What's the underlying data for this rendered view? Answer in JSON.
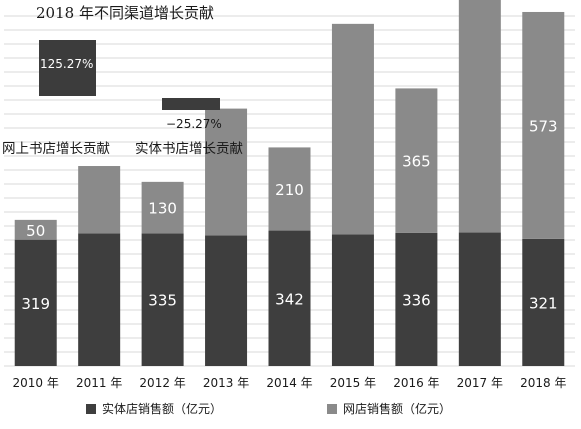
{
  "colors": {
    "physical": "#3e3e3e",
    "online": "#8a8a8a",
    "grid": "#d8d8d8",
    "inset_bar": "#3c3c3c"
  },
  "chart_data": [
    {
      "type": "bar",
      "stacked": true,
      "categories": [
        "2010 年",
        "2011 年",
        "2012 年",
        "2013 年",
        "2014 年",
        "2015 年",
        "2016 年",
        "2017 年",
        "2018 年"
      ],
      "series": [
        {
          "name": "实体店销售额（亿元）",
          "values": [
            319,
            335,
            335,
            330,
            342,
            332,
            336,
            337,
            321
          ],
          "labels": [
            "319",
            "",
            "335",
            "",
            "342",
            "",
            "336",
            "",
            "321"
          ]
        },
        {
          "name": "网店销售额（亿元）",
          "values": [
            50,
            170,
            130,
            320,
            210,
            532,
            365,
            610,
            573
          ],
          "labels": [
            "50",
            "",
            "130",
            "",
            "210",
            "",
            "365",
            "",
            "573"
          ]
        }
      ],
      "ylim": [
        0,
        1000
      ],
      "grid": true,
      "legend": "bottom"
    },
    {
      "type": "bar",
      "title": "2018 年不同渠道增长贡献",
      "categories": [
        "网上书店增长贡献",
        "实体书店增长贡献"
      ],
      "values": [
        125.27,
        -25.27
      ],
      "labels": [
        "125.27%",
        "−25.27%"
      ]
    }
  ]
}
